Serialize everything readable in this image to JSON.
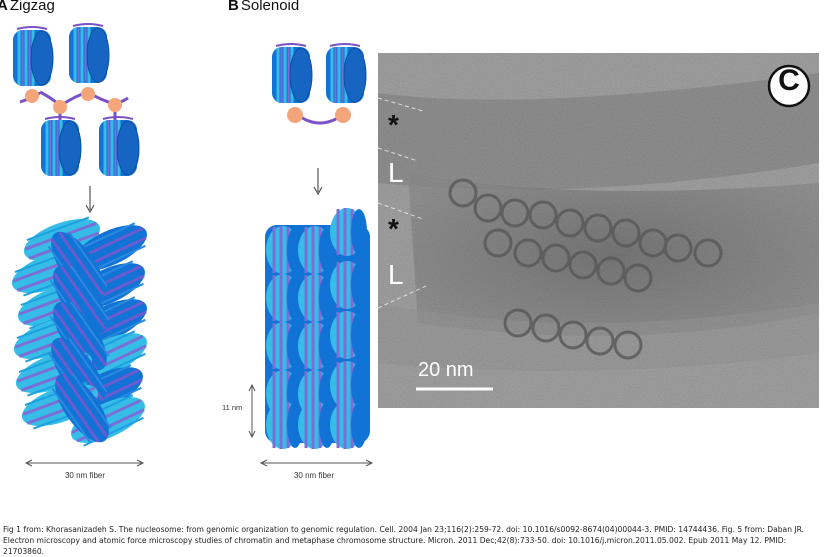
{
  "panel_a": {
    "letter": "A",
    "title": "Zigzag",
    "fiber_label": "30 nm fiber"
  },
  "panel_b": {
    "letter": "B",
    "title": "Solenoid",
    "fiber_label": "30 nm fiber",
    "height_label": "11 nm"
  },
  "panel_c": {
    "badge": "C",
    "markers": [
      "*",
      "L",
      "*",
      "L"
    ],
    "scale_bar": "20 nm"
  },
  "caption": {
    "line1": "Fig 1 from: Khorasanizadeh S. The nucleosome: from genomic organization to genomic regulation. Cell. 2004 Jan 23;116(2):259-72. doi: 10.1016/s0092-8674(04)00044-3. PMID: 14744436. Fig. 5 from: Daban JR.",
    "line2": "Electron microscopy and atomic force microscopy studies of chromatin and metaphase chromosome structure. Micron. 2011 Dec;42(8):733-50. doi: 10.1016/j.micron.2011.05.002. Epub 2011 May 12. PMID: 21703860."
  },
  "colors": {
    "nucleosome_dark": "#1273d6",
    "nucleosome_light": "#35bde8",
    "stripe": "#7b6ed6",
    "linker": "#7a52c7",
    "histone_h1": "#f4a67a"
  }
}
